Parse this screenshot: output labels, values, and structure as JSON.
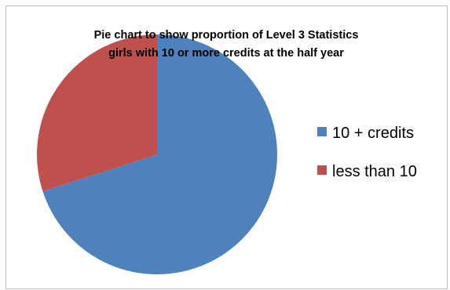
{
  "chart_data": {
    "type": "pie",
    "title_lines": [
      "Pie chart to show proportion of Level 3 Statistics",
      "girls with 10 or more credits at the half year"
    ],
    "categories": [
      "10 + credits",
      "less than 10"
    ],
    "values": [
      70,
      30
    ],
    "colors": [
      "#4f81bd",
      "#c0504d"
    ],
    "start_angle_deg": 0,
    "direction": "clockwise",
    "legend_position": "right",
    "data_labels": false
  }
}
